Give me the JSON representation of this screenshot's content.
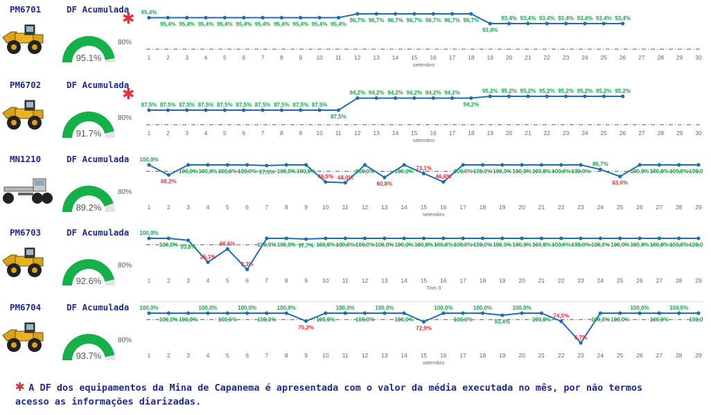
{
  "palette": {
    "line": "#1f6cb0",
    "good": "#15a64a",
    "bad": "#e0303b",
    "title": "#1f2b8f",
    "gauge_fill": "#15b04a",
    "gauge_bg": "#e4e4e4"
  },
  "footnote": "A DF dos equipamentos da Mina de Capanema é apresentada com o valor da média executada no mês, por não termos acesso as informações diarizadas.",
  "chart_data": [
    {
      "type": "line",
      "equipment": "PM6701",
      "machine_icon": "wheel-loader-icon",
      "gauge_title": "DF Acumulada",
      "gauge_value": "95.1%",
      "gauge_fraction": 0.951,
      "target_label": "80%",
      "has_asterisk": true,
      "x": [
        1,
        2,
        3,
        4,
        5,
        6,
        7,
        8,
        9,
        10,
        11,
        12,
        13,
        14,
        15,
        16,
        17,
        18,
        19,
        20,
        21,
        22,
        23,
        24,
        25,
        26
      ],
      "x_ticks": [
        1,
        2,
        3,
        4,
        5,
        6,
        7,
        8,
        9,
        10,
        11,
        12,
        13,
        14,
        15,
        16,
        17,
        18,
        19,
        20,
        21,
        22,
        23,
        24,
        25,
        26,
        27,
        28,
        29,
        30
      ],
      "values": [
        95.4,
        95.4,
        95.4,
        95.4,
        95.4,
        95.4,
        95.4,
        95.4,
        95.4,
        95.4,
        95.4,
        96.7,
        96.7,
        96.7,
        96.7,
        96.7,
        96.7,
        96.7,
        93.4,
        93.4,
        93.4,
        93.4,
        93.4,
        93.4,
        93.4,
        93.4
      ],
      "labels": [
        "95,4%",
        "95,4%",
        "95,4%",
        "95,4%",
        "95,4%",
        "95,4%",
        "95,4%",
        "95,4%",
        "95,4%",
        "95,4%",
        "95,4%",
        "96,7%",
        "96,7%",
        "96,7%",
        "96,7%",
        "96,7%",
        "96,7%",
        "96,7%",
        "93,4%",
        "93,4%",
        "93,4%",
        "93,4%",
        "93,4%",
        "93,4%",
        "93,4%",
        "93,4%"
      ],
      "label_pos": [
        "above",
        "below",
        "below",
        "below",
        "below",
        "below",
        "below",
        "below",
        "below",
        "below",
        "below",
        "below",
        "below",
        "below",
        "below",
        "below",
        "below",
        "below",
        "below",
        "above",
        "above",
        "above",
        "above",
        "above",
        "above",
        "above"
      ],
      "target": 80,
      "ylim": [
        0,
        100
      ],
      "xlabel": "setembro"
    },
    {
      "type": "line",
      "equipment": "PM6702",
      "machine_icon": "wheel-loader-icon",
      "gauge_title": "DF Acumulada",
      "gauge_value": "91.7%",
      "gauge_fraction": 0.917,
      "target_label": "80%",
      "has_asterisk": true,
      "x": [
        1,
        2,
        3,
        4,
        5,
        6,
        7,
        8,
        9,
        10,
        11,
        12,
        13,
        14,
        15,
        16,
        17,
        18,
        19,
        20,
        21,
        22,
        23,
        24,
        25,
        26
      ],
      "x_ticks": [
        1,
        2,
        3,
        4,
        5,
        6,
        7,
        8,
        9,
        10,
        11,
        12,
        13,
        14,
        15,
        16,
        17,
        18,
        19,
        20,
        21,
        22,
        23,
        24,
        25,
        26,
        27,
        28,
        29,
        30
      ],
      "values": [
        87.5,
        87.5,
        87.5,
        87.5,
        87.5,
        87.5,
        87.5,
        87.5,
        87.5,
        87.5,
        87.5,
        94.2,
        94.2,
        94.2,
        94.2,
        94.2,
        94.2,
        94.2,
        95.2,
        95.2,
        95.2,
        95.2,
        95.2,
        95.2,
        95.2,
        95.2
      ],
      "labels": [
        "87,5%",
        "87,5%",
        "87,5%",
        "87,5%",
        "87,5%",
        "87,5%",
        "87,5%",
        "87,5%",
        "87,5%",
        "87,5%",
        "87,5%",
        "94,2%",
        "94,2%",
        "94,2%",
        "94,2%",
        "94,2%",
        "94,2%",
        "94,2%",
        "95,2%",
        "95,2%",
        "95,2%",
        "95,2%",
        "95,2%",
        "95,2%",
        "95,2%",
        "95,2%"
      ],
      "label_pos": [
        "above",
        "above",
        "above",
        "above",
        "above",
        "above",
        "above",
        "above",
        "above",
        "above",
        "below",
        "above",
        "above",
        "above",
        "above",
        "above",
        "above",
        "below",
        "above",
        "above",
        "above",
        "above",
        "above",
        "above",
        "above",
        "above"
      ],
      "target": 80,
      "ylim": [
        0,
        100
      ],
      "xlabel": "setembro"
    },
    {
      "type": "line",
      "equipment": "MN1210",
      "machine_icon": "motor-grader-icon",
      "gauge_title": "DF Acumulada",
      "gauge_value": "89.2%",
      "gauge_fraction": 0.892,
      "target_label": "80%",
      "has_asterisk": false,
      "x": [
        1,
        2,
        3,
        4,
        5,
        6,
        7,
        8,
        9,
        10,
        11,
        12,
        13,
        14,
        15,
        16,
        17,
        18,
        19,
        20,
        21,
        22,
        23,
        24,
        25,
        26,
        27,
        28,
        29
      ],
      "x_ticks": [
        1,
        2,
        3,
        4,
        5,
        6,
        7,
        8,
        9,
        10,
        11,
        12,
        13,
        14,
        15,
        16,
        17,
        18,
        19,
        20,
        21,
        22,
        23,
        24,
        25,
        26,
        27,
        28,
        29
      ],
      "values": [
        100,
        68.2,
        100,
        100,
        100,
        100,
        97.9,
        100,
        100,
        46.5,
        44.0,
        100,
        60.8,
        100,
        73.1,
        46.6,
        100,
        100,
        100,
        100,
        100,
        100,
        100,
        85.7,
        63.6,
        100,
        100,
        100,
        100
      ],
      "labels": [
        "100,0%",
        "68,2%",
        "100,0%",
        "100,0%",
        "100,0%",
        "100,0%",
        "97,9%",
        "100,0%",
        "100,0%",
        "46,5%",
        "44,0%",
        "100,0%",
        "60,8%",
        "100,0%",
        "73,1%",
        "46,6%",
        "100,0%",
        "100,0%",
        "100,0%",
        "100,0%",
        "100,0%",
        "100,0%",
        "100,0%",
        "85,7%",
        "63,6%",
        "100,0%",
        "100,0%",
        "100,0%",
        "100,0%"
      ],
      "label_pos": [
        "above",
        "below",
        "below",
        "below",
        "below",
        "below",
        "below",
        "below",
        "below",
        "above",
        "above",
        "below",
        "below",
        "below",
        "above",
        "above",
        "below",
        "below",
        "below",
        "below",
        "below",
        "below",
        "below",
        "above",
        "below",
        "below",
        "below",
        "below",
        "below"
      ],
      "target": 80,
      "ylim": [
        0,
        100
      ],
      "xlabel": "setembro"
    },
    {
      "type": "line",
      "equipment": "PM6703",
      "machine_icon": "wheel-loader-icon",
      "gauge_title": "DF Acumulada",
      "gauge_value": "92.6%",
      "gauge_fraction": 0.926,
      "target_label": "80%",
      "has_asterisk": false,
      "x": [
        1,
        2,
        3,
        4,
        5,
        6,
        7,
        8,
        9,
        10,
        11,
        12,
        13,
        14,
        15,
        16,
        17,
        18,
        19,
        20,
        21,
        22,
        23,
        24,
        25,
        26,
        27,
        28,
        29
      ],
      "x_ticks": [
        1,
        2,
        3,
        4,
        5,
        6,
        7,
        8,
        9,
        10,
        11,
        12,
        13,
        14,
        15,
        16,
        17,
        18,
        19,
        20,
        21,
        22,
        23,
        24,
        25,
        26,
        27,
        28,
        29
      ],
      "values": [
        100,
        100,
        93.8,
        25.1,
        66.6,
        2.3,
        100,
        100,
        97.7,
        100,
        100,
        100,
        100,
        100,
        100,
        100,
        100,
        100,
        100,
        100,
        100,
        100,
        100,
        100,
        100,
        100,
        100,
        100,
        100
      ],
      "labels": [
        "100,0%",
        "100,0%",
        "93,8%",
        "25,1%",
        "66,6%",
        "2,3%",
        "100,0%",
        "100,0%",
        "97,7%",
        "100,0%",
        "100,0%",
        "100,0%",
        "100,0%",
        "100,0%",
        "100,0%",
        "100,0%",
        "100,0%",
        "100,0%",
        "100,0%",
        "100,0%",
        "100,0%",
        "100,0%",
        "100,0%",
        "100,0%",
        "100,0%",
        "100,0%",
        "100,0%",
        "100,0%",
        "100,0%"
      ],
      "label_pos": [
        "above",
        "below",
        "below",
        "above",
        "above",
        "above",
        "below",
        "below",
        "below",
        "below",
        "below",
        "below",
        "below",
        "below",
        "below",
        "below",
        "below",
        "below",
        "below",
        "below",
        "below",
        "below",
        "below",
        "below",
        "below",
        "below",
        "below",
        "below",
        "below"
      ],
      "target": 80,
      "ylim": [
        0,
        100
      ],
      "xlabel": "Trim 3"
    },
    {
      "type": "line",
      "equipment": "PM6704",
      "machine_icon": "wheel-loader-icon",
      "gauge_title": "DF Acumulada",
      "gauge_value": "93.7%",
      "gauge_fraction": 0.937,
      "target_label": "80%",
      "has_asterisk": false,
      "x": [
        1,
        2,
        3,
        4,
        5,
        6,
        7,
        8,
        9,
        10,
        11,
        12,
        13,
        14,
        15,
        16,
        17,
        18,
        19,
        20,
        21,
        22,
        23,
        24,
        25,
        26,
        27,
        28,
        29
      ],
      "x_ticks": [
        1,
        2,
        3,
        4,
        5,
        6,
        7,
        8,
        9,
        10,
        11,
        12,
        13,
        14,
        15,
        16,
        17,
        18,
        19,
        20,
        21,
        22,
        23,
        24,
        25,
        26,
        27,
        28,
        29
      ],
      "values": [
        100,
        100,
        100,
        100,
        100,
        100,
        100,
        100,
        75.2,
        100,
        100,
        100,
        100,
        100,
        72.9,
        100,
        100,
        100,
        93.4,
        100,
        100,
        74.5,
        6.7,
        100,
        100,
        100,
        100,
        100,
        100
      ],
      "labels": [
        "100,0%",
        "100,0%",
        "100,0%",
        "100,0%",
        "100,0%",
        "100,0%",
        "100,0%",
        "100,0%",
        "75,2%",
        "100,0%",
        "100,0%",
        "100,0%",
        "100,0%",
        "100,0%",
        "72,9%",
        "100,0%",
        "100,0%",
        "100,0%",
        "93,4%",
        "100,0%",
        "100,0%",
        "74,5%",
        "6,7%",
        "100,0%",
        "100,0%",
        "100,0%",
        "100,0%",
        "100,0%",
        "100,0%"
      ],
      "label_pos": [
        "above",
        "below",
        "below",
        "above",
        "below",
        "above",
        "below",
        "above",
        "below",
        "below",
        "above",
        "below",
        "above",
        "below",
        "below",
        "above",
        "below",
        "above",
        "below",
        "above",
        "below",
        "above",
        "above",
        "below",
        "below",
        "above",
        "below",
        "above",
        "below"
      ],
      "target": 80,
      "ylim": [
        0,
        100
      ],
      "xlabel": "setembro"
    }
  ]
}
